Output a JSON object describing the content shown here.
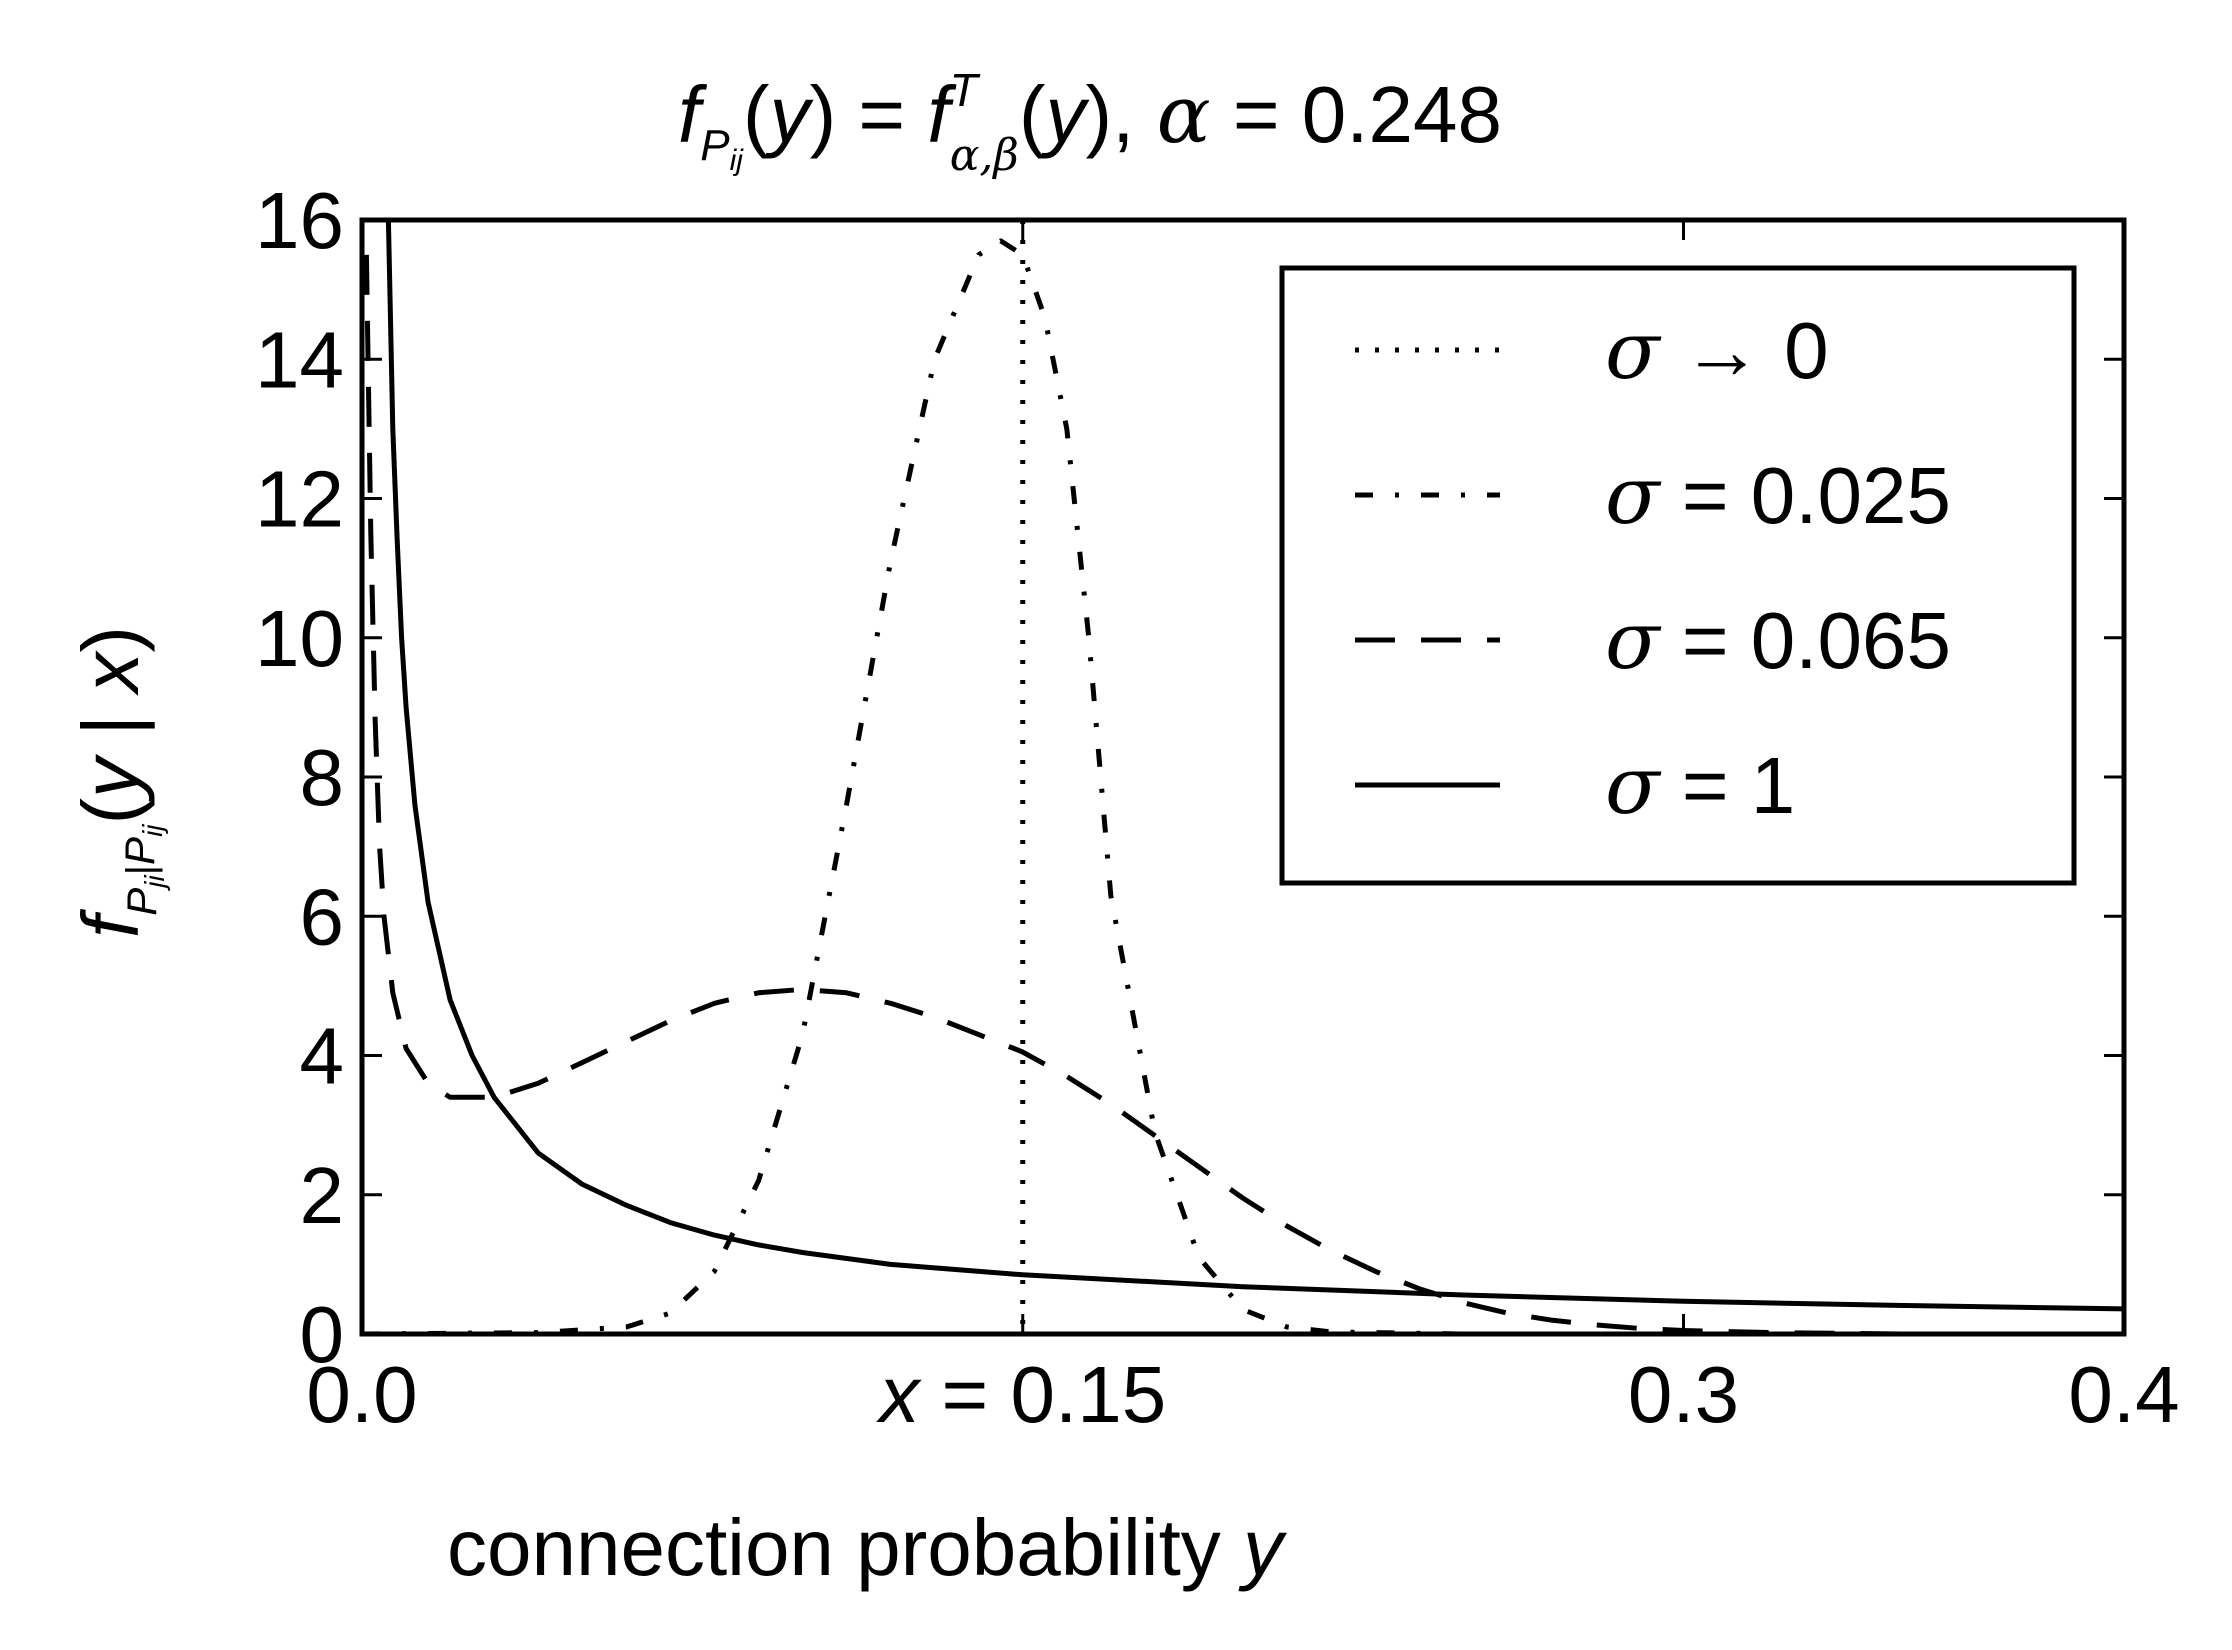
{
  "chart_data": {
    "type": "line",
    "title_parts": {
      "f": "f",
      "sub_P": "P",
      "sub_ij": "ij",
      "open": "(",
      "y": "y",
      "close": ") = ",
      "f2": "f",
      "sup_T": "T",
      "sub_ab": "α,β",
      "open2": "(",
      "y2": "y",
      "close2": "), ",
      "alpha": "α",
      "alpha_val": " = 0.248"
    },
    "xlabel": {
      "text": "connection probability ",
      "var": "y"
    },
    "ylabel": {
      "f": "f",
      "sub_P1": "P",
      "sub_ji": "ji",
      "bar": "|",
      "sub_P2": "P",
      "sub_ij": "ij",
      "open": "(",
      "y": "y",
      "mid": " | ",
      "x": "x",
      "close": ")"
    },
    "xlim": [
      0.0,
      0.4
    ],
    "ylim": [
      0,
      16
    ],
    "xticks": [
      {
        "value": 0.0,
        "label": "0.0"
      },
      {
        "value": 0.15,
        "label": " = 0.15",
        "prefix": "x"
      },
      {
        "value": 0.3,
        "label": "0.3"
      },
      {
        "value": 0.4,
        "label": "0.4"
      }
    ],
    "yticks": [
      0,
      2,
      4,
      6,
      8,
      10,
      12,
      14,
      16
    ],
    "grid": false,
    "legend_position": "top-right",
    "series": [
      {
        "name": "σ → 0",
        "name_sym": "σ",
        "name_rest": " → 0",
        "style": "dotted",
        "vertical_line_x": 0.15,
        "x": [],
        "y": []
      },
      {
        "name": "σ = 0.025",
        "name_sym": "σ",
        "name_rest": " = 0.025",
        "style": "dashdot",
        "x": [
          0.0,
          0.04,
          0.06,
          0.07,
          0.08,
          0.09,
          0.1,
          0.11,
          0.12,
          0.13,
          0.14,
          0.145,
          0.15,
          0.155,
          0.16,
          0.165,
          0.17,
          0.18,
          0.19,
          0.2,
          0.21,
          0.22,
          0.25,
          0.3,
          0.4
        ],
        "y": [
          0.0,
          0.02,
          0.1,
          0.3,
          0.9,
          2.2,
          4.3,
          7.6,
          11.1,
          14.0,
          15.5,
          15.7,
          15.5,
          14.6,
          13.0,
          10.0,
          6.3,
          2.9,
          1.1,
          0.35,
          0.1,
          0.03,
          0.0,
          0.0,
          0.0
        ]
      },
      {
        "name": "σ = 0.065",
        "name_sym": "σ",
        "name_rest": " = 0.065",
        "style": "dashed",
        "x": [
          0.001,
          0.002,
          0.003,
          0.004,
          0.005,
          0.007,
          0.01,
          0.015,
          0.02,
          0.03,
          0.04,
          0.05,
          0.06,
          0.07,
          0.08,
          0.09,
          0.1,
          0.11,
          0.12,
          0.13,
          0.14,
          0.15,
          0.16,
          0.17,
          0.18,
          0.19,
          0.2,
          0.21,
          0.22,
          0.23,
          0.24,
          0.25,
          0.26,
          0.27,
          0.28,
          0.29,
          0.3,
          0.32,
          0.35,
          0.4
        ],
        "y": [
          15.5,
          11.5,
          8.8,
          7.0,
          6.0,
          4.9,
          4.1,
          3.6,
          3.4,
          3.4,
          3.6,
          3.9,
          4.2,
          4.5,
          4.75,
          4.9,
          4.95,
          4.9,
          4.75,
          4.55,
          4.3,
          4.05,
          3.7,
          3.3,
          2.85,
          2.4,
          1.95,
          1.55,
          1.2,
          0.9,
          0.65,
          0.45,
          0.3,
          0.2,
          0.13,
          0.08,
          0.05,
          0.02,
          0.0,
          0.0
        ]
      },
      {
        "name": "σ = 1",
        "name_sym": "σ",
        "name_rest": " = 1",
        "style": "solid",
        "x": [
          0.006,
          0.007,
          0.008,
          0.009,
          0.01,
          0.012,
          0.015,
          0.02,
          0.025,
          0.03,
          0.04,
          0.05,
          0.06,
          0.07,
          0.08,
          0.09,
          0.1,
          0.12,
          0.15,
          0.2,
          0.25,
          0.3,
          0.35,
          0.4
        ],
        "y": [
          16.0,
          13.0,
          11.4,
          10.0,
          9.0,
          7.6,
          6.2,
          4.8,
          4.0,
          3.4,
          2.6,
          2.15,
          1.85,
          1.6,
          1.42,
          1.28,
          1.17,
          1.0,
          0.85,
          0.68,
          0.56,
          0.47,
          0.41,
          0.36
        ]
      }
    ]
  }
}
